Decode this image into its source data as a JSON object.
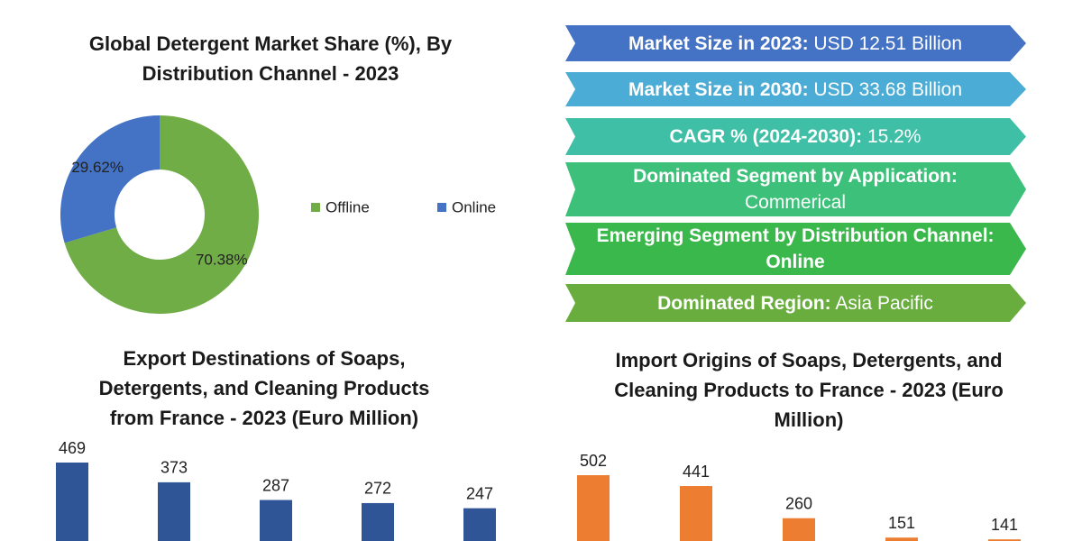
{
  "chart_data": [
    {
      "type": "donut",
      "title": "Global Detergent Market Share (%), By Distribution Channel - 2023",
      "categories": [
        "Offline",
        "Online"
      ],
      "values": [
        70.38,
        29.62
      ],
      "value_labels": [
        "70.38%",
        "29.62%"
      ],
      "colors": [
        "#70ad47",
        "#4472c4"
      ],
      "legend": "right"
    },
    {
      "type": "bar",
      "title": "Export Destinations of Soaps, Detergents, and Cleaning Products from France - 2023 (Euro Million)",
      "categories": [
        null,
        null,
        null,
        null,
        null
      ],
      "values": [
        469,
        373,
        287,
        272,
        247
      ],
      "color": "#2f5597"
    },
    {
      "type": "bar",
      "title": "Import Origins of Soaps, Detergents, and Cleaning Products to France - 2023 (Euro Million)",
      "categories": [
        null,
        null,
        null,
        null,
        null
      ],
      "values": [
        502,
        441,
        260,
        151,
        141
      ],
      "color": "#ed7d31"
    }
  ],
  "banners": [
    {
      "label": "Market Size in 2023:",
      "value": "USD 12.51 Billion",
      "color": "#4472c4"
    },
    {
      "label": "Market Size in 2030:",
      "value": "USD 33.68 Billion",
      "color": "#4bacd6"
    },
    {
      "label": "CAGR % (2024-2030):",
      "value": "15.2%",
      "color": "#3fbfa6"
    },
    {
      "label": "Dominated Segment by Application:",
      "value": "Commerical",
      "color": "#3cc07a"
    },
    {
      "label": "Emerging Segment by Distribution Channel: Online",
      "color": "#3bb84c"
    },
    {
      "label": "Dominated Region:",
      "value": "Asia Pacific",
      "color": "#68ad3e"
    }
  ]
}
